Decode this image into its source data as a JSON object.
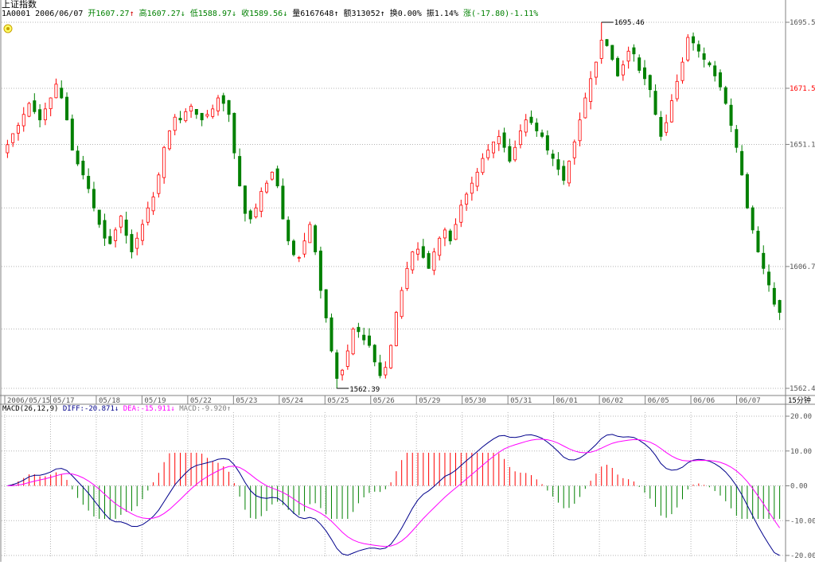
{
  "header": {
    "title": "上证指数",
    "code": "1A0001",
    "date": "2006/06/07",
    "open_label": "开",
    "open": "1607.27",
    "high_label": "高",
    "high": "1607.27",
    "low_label": "低",
    "low": "1588.97",
    "close_label": "收",
    "close": "1589.56",
    "volume_label": "量",
    "volume": "6167648",
    "amount_label": "额",
    "amount": "313052",
    "turnover_label": "换",
    "turnover": "0.00%",
    "amplitude_label": "振",
    "amplitude": "1.14%",
    "change_label": "涨",
    "change": "(-17.80)",
    "change_pct": "-1.11%"
  },
  "macd": {
    "label": "MACD(26,12,9)",
    "diff_label": "DIFF:",
    "diff": "-20.871",
    "dea_label": "DEA:",
    "dea": "-15.911",
    "macd_label": "MACD:",
    "macd": "-9.920"
  },
  "period_label": "15分钟",
  "colors": {
    "up": "#ff0000",
    "down": "#008000",
    "diff": "#00008b",
    "dea": "#ff00ff",
    "grid": "#b4b4b4",
    "axis": "#808080"
  },
  "chart_data": [
    {
      "type": "candlestick",
      "title": "上证指数",
      "interval": "15分钟",
      "y_ticks": [
        "1695.5",
        "1671.5",
        "1651.1",
        "1606.7",
        "1562.4"
      ],
      "y_range": [
        1562.4,
        1695.5
      ],
      "highlighted_tick": "1671.5",
      "x_tick_labels": [
        "2006/05/15",
        "05/17",
        "05/18",
        "05/19",
        "05/22",
        "05/23",
        "05/24",
        "05/25",
        "05/26",
        "05/29",
        "05/30",
        "05/31",
        "06/01",
        "06/02",
        "06/05",
        "06/06",
        "06/07"
      ],
      "annotations": {
        "max": "1695.46",
        "min": "1562.39"
      },
      "close_series": [
        1651,
        1655,
        1658,
        1662,
        1666,
        1663,
        1660,
        1664,
        1668,
        1673,
        1668,
        1660,
        1649,
        1644,
        1640,
        1635,
        1628,
        1622,
        1617,
        1615,
        1620,
        1625,
        1618,
        1612,
        1617,
        1622,
        1628,
        1632,
        1640,
        1650,
        1656,
        1661,
        1660,
        1663,
        1665,
        1662,
        1660,
        1662,
        1664,
        1668,
        1666,
        1662,
        1648,
        1636,
        1626,
        1624,
        1628,
        1634,
        1637,
        1641,
        1636,
        1624,
        1616,
        1611,
        1610,
        1616,
        1622,
        1612,
        1598,
        1588,
        1576,
        1566,
        1569,
        1576,
        1584,
        1583,
        1580,
        1578,
        1572,
        1567,
        1570,
        1578,
        1590,
        1598,
        1606,
        1612,
        1613,
        1610,
        1606,
        1612,
        1617,
        1620,
        1616,
        1622,
        1629,
        1633,
        1637,
        1641,
        1646,
        1649,
        1652,
        1654,
        1650,
        1645,
        1650,
        1656,
        1660,
        1659,
        1656,
        1654,
        1649,
        1646,
        1642,
        1638,
        1645,
        1652,
        1660,
        1668,
        1675,
        1681,
        1689,
        1687,
        1682,
        1676,
        1680,
        1685,
        1684,
        1678,
        1675,
        1671,
        1662,
        1654,
        1659,
        1667,
        1674,
        1681,
        1690,
        1688,
        1685,
        1682,
        1680,
        1676,
        1672,
        1666,
        1658,
        1650,
        1640,
        1628,
        1620,
        1612,
        1606,
        1600,
        1593,
        1590
      ]
    },
    {
      "type": "bar_line",
      "title": "MACD(26,12,9)",
      "series": [
        {
          "name": "DIFF",
          "value": -20.871
        },
        {
          "name": "DEA",
          "value": -15.911
        },
        {
          "name": "MACD",
          "value": -9.92
        }
      ],
      "y_ticks": [
        "20.00",
        "10.00",
        "0.00",
        "-10.00",
        "-20.00"
      ],
      "y_range": [
        -20,
        20
      ]
    }
  ]
}
